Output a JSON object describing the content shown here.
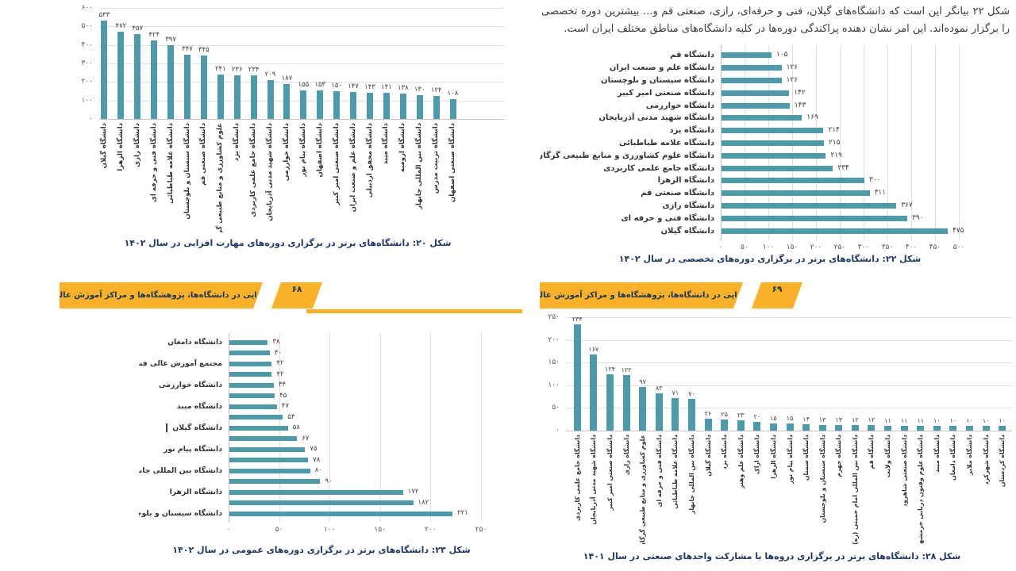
{
  "document": {
    "paragraph": "شکل ۲۲ بیانگر این است که دانشگاه‌های گیلان، فنی و حرفه‌ای، رازی، صنعتی قم و... بیشترین دوره تخصصی را برگزار نموده‌اند. این امر نشان دهنده پراکندگی دوره‌ها در کلیه دانشگاه‌های مناطق مختلف ایران است.",
    "banners": [
      {
        "title": "مهارت‌افزایی در دانشگاه‌ها، پژوهشگاه‌ها و مراکز آموزش عالی کشور",
        "page_number": "۶۸"
      },
      {
        "title": "مهارت‌افزایی در دانشگاه‌ها، پژوهشگاه‌ها و مراکز آموزش عالی کشور",
        "page_number": "۶۹"
      }
    ],
    "colors": {
      "bar": "#4d9aab",
      "banner": "#f8b128",
      "caption_text": "#1f3864",
      "body_text": "#3a3a3a",
      "gridline": "#e0e0e0"
    }
  },
  "chart_data": [
    {
      "id": "fig20",
      "type": "bar",
      "orientation": "vertical",
      "title": "شکل ۲۰: دانشگاه‌های برتر در برگزاری دوره‌های مهارت افزایی در سال ۱۴۰۲",
      "categories": [
        "دانشگاه گیلان",
        "دانشگاه الزهرا",
        "دانشگاه رازی",
        "دانشگاه فنی و حرفه ای",
        "دانشگاه علامه طباطبائی",
        "دانشگاه سیستان و بلوچستان",
        "دانشگاه صنعتی قم",
        "علوم کشاورزی و منابع طبیعی گر",
        "دانشگاه یزد",
        "دانشگاه جامع علمی کاربردی",
        "دانشگاه شهید مدنی آذربایجان",
        "دانشگاه خوارزمی",
        "دانشگاه پیام نور",
        "دانشگاه اصفهان",
        "دانشگاه صنعتی امیر کبیر",
        "دانشگاه علم و صنعت ایران",
        "دانشگاه محقق اردبیلی",
        "دانشگاه میبد",
        "دانشگاه ارومیه",
        "دانشگاه بین المللی چابهار",
        "دانشگاه تربیت مدرس",
        "دانشگاه صنعتی اصفهان"
      ],
      "values": [
        533,
        472,
        457,
        424,
        397,
        347,
        345,
        241,
        236,
        234,
        209,
        187,
        155,
        153,
        150,
        147,
        143,
        141,
        138,
        130,
        124,
        108
      ],
      "ylim": [
        0,
        600
      ],
      "ytick_step": 100,
      "grid": true,
      "value_labels": true,
      "digit_style": "persian"
    },
    {
      "id": "fig22",
      "type": "bar",
      "orientation": "horizontal",
      "title": "شکل ۲۲: دانشگاه‌های برتر در برگزاری دوره‌های تخصصی در سال ۱۴۰۲",
      "categories": [
        "دانشگاه قم",
        "دانشگاه علم و صنعت ایران",
        "دانشگاه سیستان و بلوچستان",
        "دانشگاه صنعتی امیر کبیر",
        "دانشگاه خوارزمی",
        "دانشگاه شهید مدنی آذربایجان",
        "دانشگاه یزد",
        "دانشگاه علامه طباطبائی",
        "دانشگاه علوم کشاورزی و منابع طبیعی گرگان",
        "دانشگاه جامع علمی کاربردی",
        "دانشگاه الزهرا",
        "دانشگاه صنعتی قم",
        "دانشگاه رازی",
        "دانشگاه فنی و حرفه ای",
        "دانشگاه گیلان"
      ],
      "values": [
        105,
        126,
        126,
        142,
        143,
        169,
        214,
        215,
        219,
        234,
        300,
        311,
        367,
        390,
        475
      ],
      "xlim": [
        0,
        500
      ],
      "xtick_step": 50,
      "grid": true,
      "value_labels": true,
      "digit_style": "persian"
    },
    {
      "id": "fig23",
      "type": "bar",
      "orientation": "horizontal",
      "title": "شکل ۲۳: دانشگاه‌های برتر در برگزاری دوره‌های عمومی در سال ۱۴۰۲",
      "categories": [
        "دانشگاه دامغان",
        "",
        "مجتمع آموزش عالی فنی مهندسی اسفراین",
        "",
        "دانشگاه خوارزمی",
        "",
        "دانشگاه میبد",
        "",
        "دانشگاه گیلان",
        "",
        "دانشگاه پیام نور",
        "",
        "دانشگاه بین المللی چابهار",
        "",
        "دانشگاه الزهرا",
        "",
        "دانشگاه سیستان و بلوچستان"
      ],
      "values": [
        38,
        40,
        42,
        42,
        44,
        45,
        47,
        53,
        58,
        67,
        75,
        78,
        80,
        90,
        172,
        182,
        221
      ],
      "xlim": [
        0,
        250
      ],
      "xtick_step": 50,
      "grid": true,
      "value_labels": true,
      "caret_row": 8,
      "digit_style": "persian"
    },
    {
      "id": "fig28",
      "type": "bar",
      "orientation": "vertical",
      "title": "شکل ۲۸: دانشگاه‌های برتر در برگزاری دروه‌ها با مشارکت واحدهای صنعتی در سال ۱۴۰۱",
      "categories": [
        "دانشگاه جامع علمی کاربردی",
        "دانشگاه شهید مدنی آذربایجان",
        "دانشگاه صنعتی امیر کبیر",
        "دانشگاه رازی",
        "علوم کشاورزی و منابع طبیعی گرگان",
        "دانشگاه فنی و حرفه ای",
        "دانشگاه علامه طباطبائی",
        "دانشگاه بین المللی چابهار",
        "دانشگاه گیلان",
        "دانشگاه یزد",
        "دانشگاه علم وهنر",
        "دانشگاه اراک",
        "دانشگاه الزهرا",
        "دانشگاه پیام نور",
        "دانشگاه سمنان",
        "دانشگاه سیستان و بلوچستان",
        "دانشگاه جهرم",
        "دانشگاه بین المللی امام خمینی (ره)",
        "دانشگاه قم",
        "دانشگاه ولایت",
        "دانشگاه صنعتی شاهرود",
        "دانشگاه علوم وفنون دریایی خرمشهر",
        "دانشگاه میبد",
        "دانشگاه دامغان",
        "دانشگاه ملایر",
        "دانشگاه شهرکرد",
        "دانشگاه کردستان"
      ],
      "values": [
        234,
        167,
        124,
        122,
        97,
        83,
        71,
        70,
        26,
        25,
        23,
        20,
        15,
        15,
        14,
        13,
        13,
        12,
        12,
        11,
        11,
        11,
        10,
        10,
        10,
        10,
        10
      ],
      "ylim": [
        0,
        250
      ],
      "ytick_step": 50,
      "grid": true,
      "value_labels": true,
      "digit_style": "persian"
    }
  ]
}
